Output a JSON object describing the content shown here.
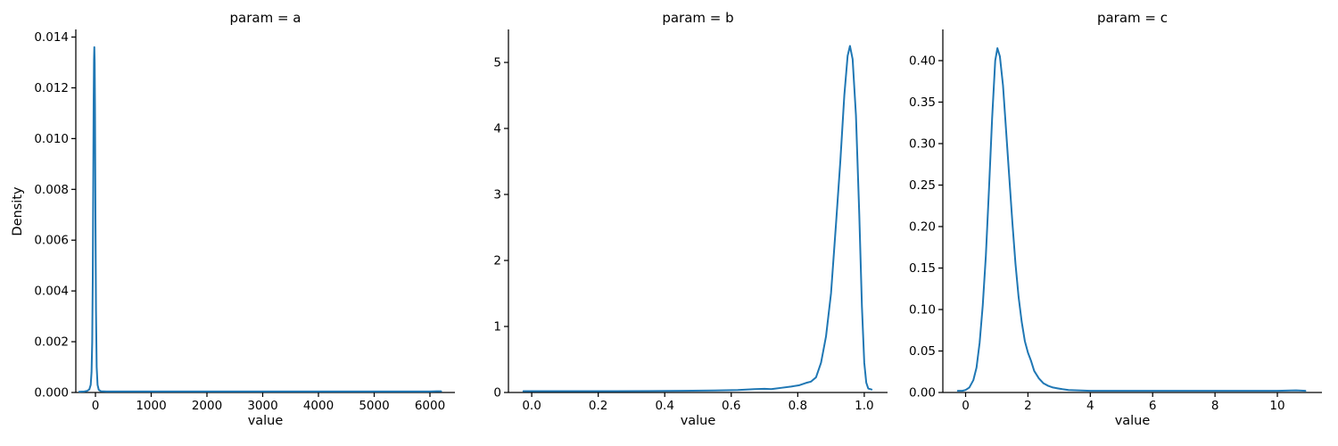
{
  "figure": {
    "background": "#ffffff",
    "text_color": "#000000",
    "spine_color": "#000000",
    "accent_line_color": "#1f77b4"
  },
  "chart_data": [
    {
      "type": "line",
      "chart_kind": "kde-density",
      "title": "param = a",
      "xlabel": "value",
      "ylabel": "Density",
      "grid": false,
      "legend": false,
      "line_color": "#1f77b4",
      "xlim": [
        -352,
        6448
      ],
      "ylim": [
        0,
        0.0143
      ],
      "xticks": [
        0,
        1000,
        2000,
        3000,
        4000,
        5000,
        6000
      ],
      "xtick_labels": [
        "0",
        "1000",
        "2000",
        "3000",
        "4000",
        "5000",
        "6000"
      ],
      "yticks": [
        0.0,
        0.002,
        0.004,
        0.006,
        0.008,
        0.01,
        0.012,
        0.014
      ],
      "ytick_labels": [
        "0.000",
        "0.002",
        "0.004",
        "0.006",
        "0.008",
        "0.010",
        "0.012",
        "0.014"
      ],
      "series": [
        {
          "name": "kde",
          "x": [
            -290,
            -200,
            -150,
            -110,
            -85,
            -70,
            -58,
            -48,
            -40,
            -32,
            -26,
            -20,
            -14,
            -8,
            0,
            10,
            22,
            38,
            60,
            100,
            200,
            500,
            1000,
            1500,
            2000,
            2500,
            3000,
            3500,
            4000,
            4500,
            5000,
            5500,
            6000,
            6120,
            6200
          ],
          "y": [
            3e-05,
            4e-05,
            6e-05,
            0.00012,
            0.0003,
            0.0008,
            0.002,
            0.0045,
            0.008,
            0.0115,
            0.0131,
            0.0136,
            0.013,
            0.0112,
            0.007,
            0.0032,
            0.001,
            0.0003,
            0.0001,
            5e-05,
            4e-05,
            4e-05,
            4e-05,
            4e-05,
            4e-05,
            4e-05,
            4e-05,
            4e-05,
            4e-05,
            4e-05,
            4e-05,
            4e-05,
            4e-05,
            5e-05,
            5e-05
          ]
        }
      ]
    },
    {
      "type": "line",
      "chart_kind": "kde-density",
      "title": "param = b",
      "xlabel": "value",
      "ylabel": "",
      "grid": false,
      "legend": false,
      "line_color": "#1f77b4",
      "xlim": [
        -0.07,
        1.07
      ],
      "ylim": [
        0,
        5.5
      ],
      "xticks": [
        0.0,
        0.2,
        0.4,
        0.6,
        0.8,
        1.0
      ],
      "xtick_labels": [
        "0.0",
        "0.2",
        "0.4",
        "0.6",
        "0.8",
        "1.0"
      ],
      "yticks": [
        0,
        1,
        2,
        3,
        4,
        5
      ],
      "ytick_labels": [
        "0",
        "1",
        "2",
        "3",
        "4",
        "5"
      ],
      "series": [
        {
          "name": "kde",
          "x": [
            -0.025,
            0.05,
            0.15,
            0.25,
            0.35,
            0.45,
            0.55,
            0.62,
            0.67,
            0.7,
            0.72,
            0.75,
            0.78,
            0.805,
            0.825,
            0.84,
            0.855,
            0.87,
            0.885,
            0.9,
            0.915,
            0.928,
            0.94,
            0.95,
            0.957,
            0.965,
            0.975,
            0.985,
            0.993,
            1.0,
            1.006,
            1.012,
            1.022
          ],
          "y": [
            0.02,
            0.02,
            0.02,
            0.02,
            0.022,
            0.025,
            0.03,
            0.038,
            0.05,
            0.055,
            0.05,
            0.07,
            0.09,
            0.11,
            0.145,
            0.165,
            0.23,
            0.45,
            0.85,
            1.5,
            2.55,
            3.5,
            4.5,
            5.1,
            5.25,
            5.05,
            4.2,
            2.7,
            1.3,
            0.45,
            0.15,
            0.06,
            0.045
          ]
        }
      ]
    },
    {
      "type": "line",
      "chart_kind": "kde-density",
      "title": "param = c",
      "xlabel": "value",
      "ylabel": "",
      "grid": false,
      "legend": false,
      "line_color": "#1f77b4",
      "xlim": [
        -0.73,
        11.43
      ],
      "ylim": [
        0,
        0.4376
      ],
      "xticks": [
        0,
        2,
        4,
        6,
        8,
        10
      ],
      "xtick_labels": [
        "0",
        "2",
        "4",
        "6",
        "8",
        "10"
      ],
      "yticks": [
        0.0,
        0.05,
        0.1,
        0.15,
        0.2,
        0.25,
        0.3,
        0.35,
        0.4
      ],
      "ytick_labels": [
        "0.00",
        "0.05",
        "0.10",
        "0.15",
        "0.20",
        "0.25",
        "0.30",
        "0.35",
        "0.40"
      ],
      "series": [
        {
          "name": "kde",
          "x": [
            -0.25,
            -0.1,
            0.0,
            0.12,
            0.25,
            0.35,
            0.45,
            0.55,
            0.65,
            0.75,
            0.85,
            0.95,
            1.02,
            1.1,
            1.2,
            1.3,
            1.4,
            1.5,
            1.6,
            1.7,
            1.8,
            1.9,
            2.0,
            2.1,
            2.2,
            2.35,
            2.5,
            2.65,
            2.8,
            2.95,
            3.1,
            3.3,
            3.6,
            4.0,
            4.5,
            5.0,
            6.0,
            7.0,
            8.0,
            9.0,
            10.0,
            10.6,
            10.9
          ],
          "y": [
            0.002,
            0.002,
            0.003,
            0.006,
            0.015,
            0.03,
            0.06,
            0.105,
            0.165,
            0.245,
            0.33,
            0.4,
            0.415,
            0.405,
            0.37,
            0.315,
            0.26,
            0.205,
            0.155,
            0.115,
            0.085,
            0.062,
            0.048,
            0.038,
            0.026,
            0.017,
            0.011,
            0.008,
            0.006,
            0.005,
            0.004,
            0.003,
            0.0025,
            0.002,
            0.002,
            0.002,
            0.002,
            0.002,
            0.002,
            0.002,
            0.002,
            0.0025,
            0.002
          ]
        }
      ]
    }
  ]
}
